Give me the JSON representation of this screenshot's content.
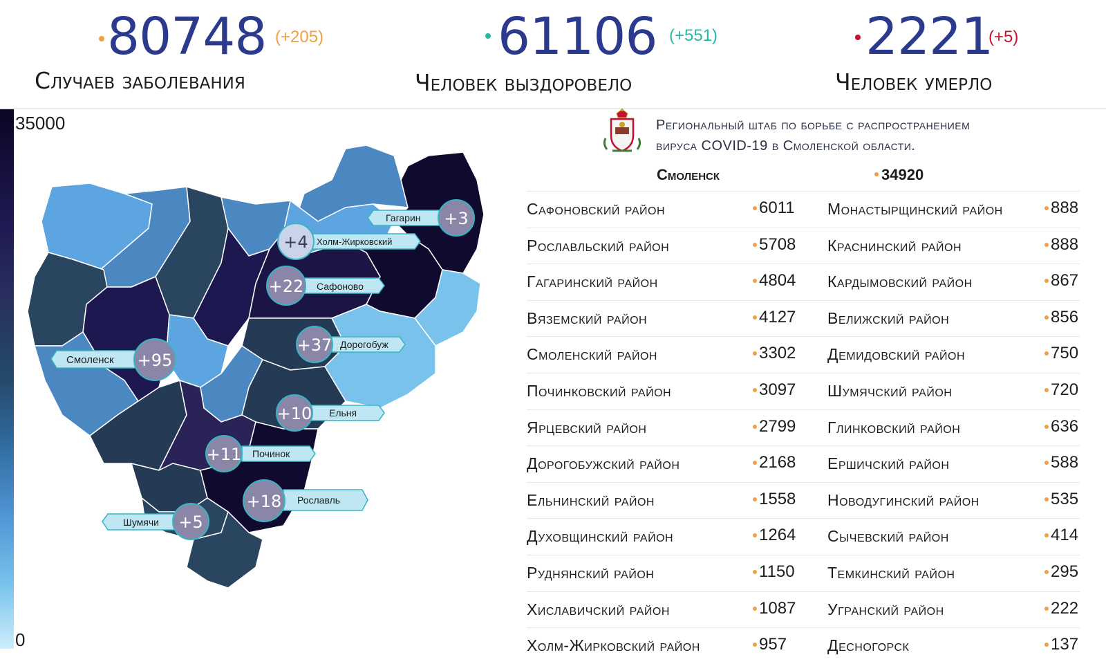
{
  "stats": {
    "cases": {
      "value": "80748",
      "delta": "(+205)",
      "caption": "Случаев заболевания",
      "dot_color": "#f0a040",
      "delta_color": "#f0a040"
    },
    "recovered": {
      "value": "61106",
      "delta": "(+551)",
      "caption": "Человек выздоровело",
      "dot_color": "#26b8a5",
      "delta_color": "#26b8a5"
    },
    "deaths": {
      "value": "2221",
      "delta": "(+5)",
      "caption": "Человек умерло",
      "dot_color": "#c8102e",
      "delta_color": "#c8102e"
    }
  },
  "legend": {
    "max": "35000",
    "min": "0"
  },
  "headquarters": {
    "line1": "Региональный штаб по борьбе с распространением",
    "line2": "вируса COVID-19 в Смоленской области."
  },
  "city": {
    "name": "Смоленск",
    "value": "34920"
  },
  "districts": [
    {
      "left": {
        "name": "Сафоновский район",
        "value": "6011"
      },
      "right": {
        "name": "Монастырщинский район",
        "value": "888"
      }
    },
    {
      "left": {
        "name": "Рославльский район",
        "value": "5708"
      },
      "right": {
        "name": "Краснинский район",
        "value": "888"
      }
    },
    {
      "left": {
        "name": "Гагаринский район",
        "value": "4804"
      },
      "right": {
        "name": "Кардымовский район",
        "value": "867"
      }
    },
    {
      "left": {
        "name": "Вяземский район",
        "value": "4127"
      },
      "right": {
        "name": "Велижский район",
        "value": "856"
      }
    },
    {
      "left": {
        "name": "Смоленский район",
        "value": "3302"
      },
      "right": {
        "name": "Демидовский район",
        "value": "750"
      }
    },
    {
      "left": {
        "name": "Починковский район",
        "value": "3097"
      },
      "right": {
        "name": "Шумячский район",
        "value": "720"
      }
    },
    {
      "left": {
        "name": "Ярцевский район",
        "value": "2799"
      },
      "right": {
        "name": "Глинковский район",
        "value": "636"
      }
    },
    {
      "left": {
        "name": "Дорогобужский район",
        "value": "2168"
      },
      "right": {
        "name": "Ершичский район",
        "value": "588"
      }
    },
    {
      "left": {
        "name": "Ельнинский район",
        "value": "1558"
      },
      "right": {
        "name": "Новодугинский район",
        "value": "535"
      }
    },
    {
      "left": {
        "name": "Духовщинский район",
        "value": "1264"
      },
      "right": {
        "name": "Сычевский район",
        "value": "414"
      }
    },
    {
      "left": {
        "name": "Руднянский район",
        "value": "1150"
      },
      "right": {
        "name": "Темкинский район",
        "value": "295"
      }
    },
    {
      "left": {
        "name": "Хиславичский район",
        "value": "1087"
      },
      "right": {
        "name": "Угранский район",
        "value": "222"
      }
    },
    {
      "left": {
        "name": "Холм-Жирковский район",
        "value": "957"
      },
      "right": {
        "name": "Десногорск",
        "value": "137"
      }
    }
  ],
  "map_markers": [
    {
      "label": "Гагарин",
      "delta": "+3"
    },
    {
      "label": "Холм-Жирковский",
      "delta": "+4"
    },
    {
      "label": "Сафоново",
      "delta": "+22"
    },
    {
      "label": "Дорогобуж",
      "delta": "+37"
    },
    {
      "label": "Смоленск",
      "delta": "+95"
    },
    {
      "label": "Ельня",
      "delta": "+10"
    },
    {
      "label": "Починок",
      "delta": "+11"
    },
    {
      "label": "Рославль",
      "delta": "+18"
    },
    {
      "label": "Шумячи",
      "delta": "+5"
    }
  ],
  "colors": {
    "number_blue": "#2b3a8c",
    "marker_label_bg": "#bfe6f3",
    "marker_label_stroke": "#38b4c4",
    "bubble_fill": "#8a86a8"
  }
}
